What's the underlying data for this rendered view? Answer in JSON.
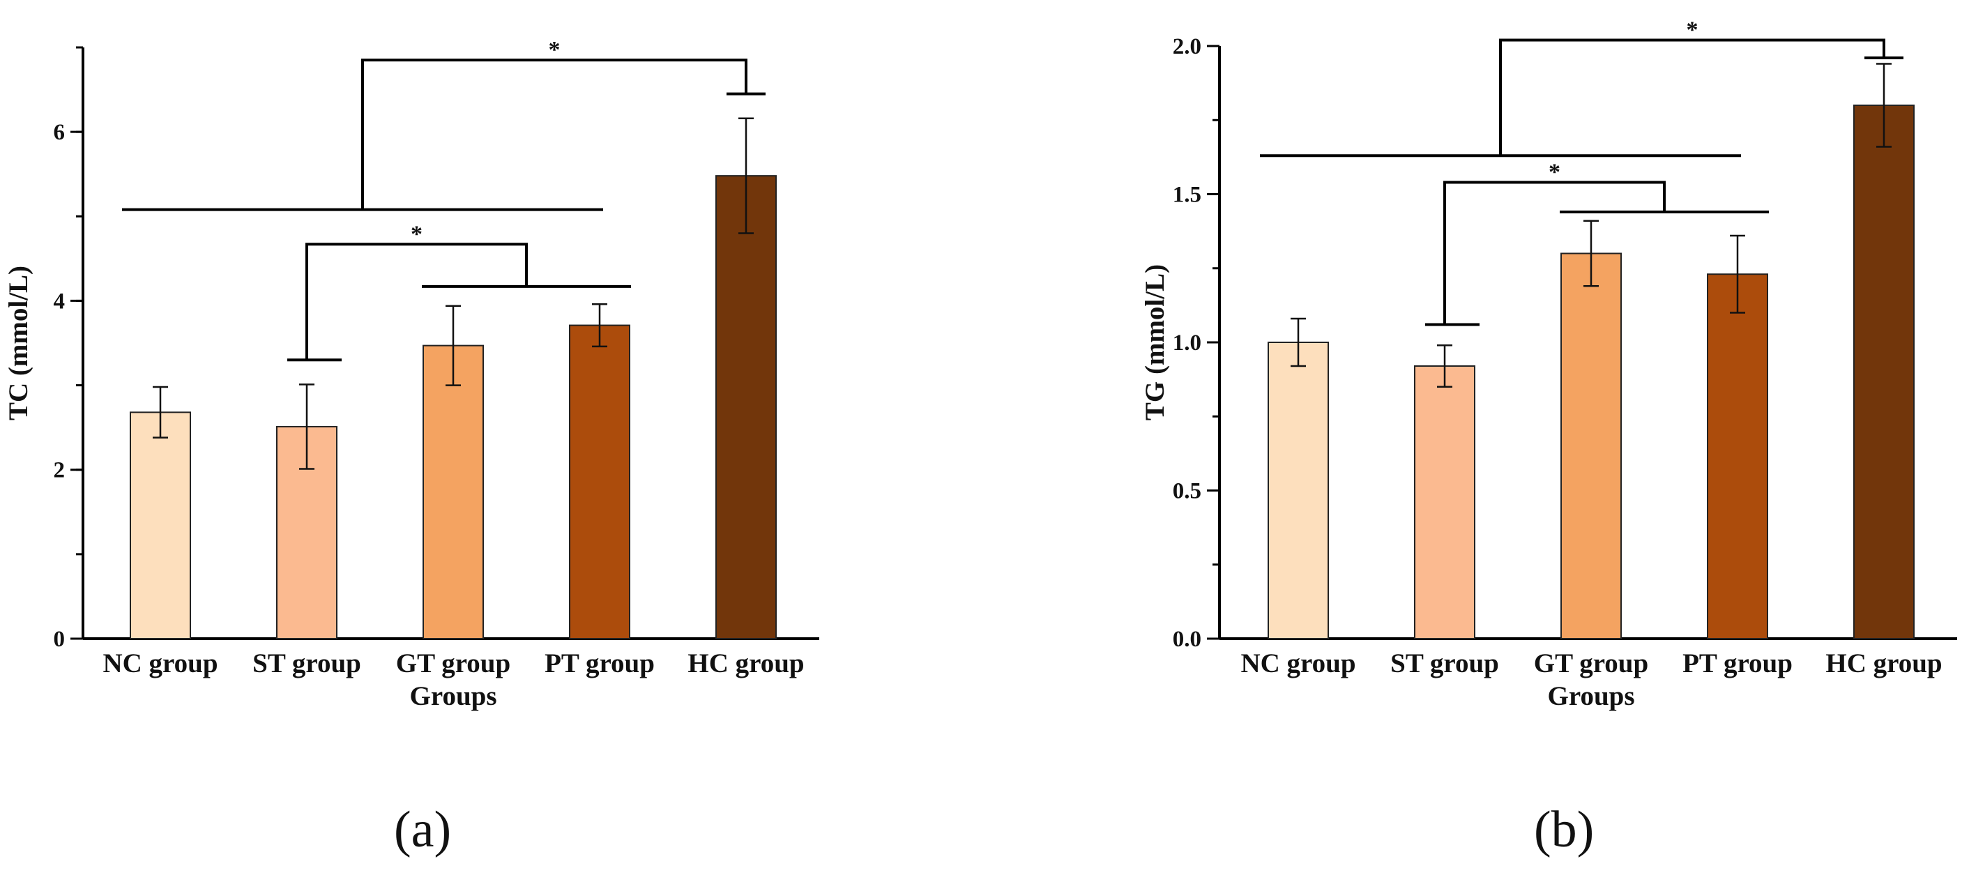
{
  "chart_data": [
    {
      "type": "bar",
      "panel": "(a)",
      "categories": [
        "NC group",
        "ST group",
        "GT group",
        "PT group",
        "HC group"
      ],
      "values": [
        2.68,
        2.51,
        3.47,
        3.71,
        5.48
      ],
      "errors": [
        0.3,
        0.5,
        0.47,
        0.25,
        0.68
      ],
      "colors": [
        "#fddfbd",
        "#fbba90",
        "#f4a361",
        "#ac4c0c",
        "#72360b"
      ],
      "xlabel": "Groups",
      "ylabel": "TC (mmol/L)",
      "ylim": [
        0,
        7
      ],
      "yticks": [
        0,
        2,
        4,
        6
      ],
      "minor_step": 1,
      "significance": [
        {
          "from_categories": [
            0,
            3
          ],
          "to_category": 4,
          "from_level": 5.08,
          "top_level": 6.85,
          "to_level": 6.45,
          "label": "*"
        },
        {
          "from_category": 1,
          "to_categories": [
            2,
            3
          ],
          "from_level": 3.3,
          "top_level": 4.67,
          "to_level": 4.17,
          "label": "*"
        }
      ]
    },
    {
      "type": "bar",
      "panel": "(b)",
      "categories": [
        "NC group",
        "ST group",
        "GT group",
        "PT group",
        "HC group"
      ],
      "values": [
        1.0,
        0.92,
        1.3,
        1.23,
        1.8
      ],
      "errors": [
        0.08,
        0.07,
        0.11,
        0.13,
        0.14
      ],
      "colors": [
        "#fddfbd",
        "#fbba90",
        "#f4a361",
        "#ac4c0c",
        "#72360b"
      ],
      "xlabel": "Groups",
      "ylabel": "TG (mmol/L)",
      "ylim": [
        0,
        2.0
      ],
      "yticks": [
        0.0,
        0.5,
        1.0,
        1.5,
        2.0
      ],
      "ytick_labels": [
        "0.0",
        "0.5",
        "1.0",
        "1.5",
        "2.0"
      ],
      "minor_step": 0.25,
      "significance": [
        {
          "from_categories": [
            0,
            3
          ],
          "to_category": 4,
          "from_level": 1.63,
          "top_level": 2.02,
          "to_level": 1.96,
          "label": "*"
        },
        {
          "from_category": 1,
          "to_categories": [
            2,
            3
          ],
          "from_level": 1.06,
          "top_level": 1.54,
          "to_level": 1.44,
          "label": "*"
        }
      ]
    }
  ],
  "panel_labels": {
    "a": "(a)",
    "b": "(b)"
  }
}
